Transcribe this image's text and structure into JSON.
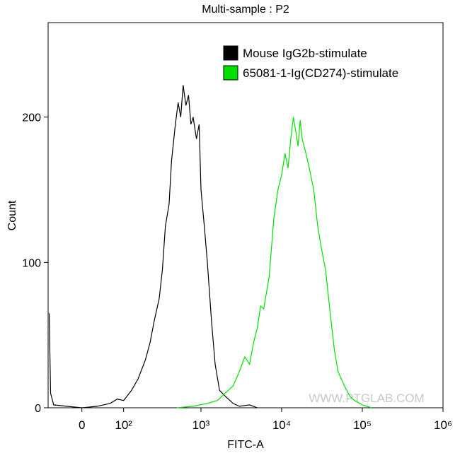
{
  "chart_data": {
    "type": "histogram-line",
    "title": "Multi-sample : P2",
    "xlabel": "FITC-A",
    "ylabel": "Count",
    "watermark": "WWW.PTGLAB.COM",
    "xscale": "biexponential",
    "xlim": [
      -75,
      1000000
    ],
    "ylim": [
      0,
      265
    ],
    "xticks": [
      0,
      {
        "value": 100,
        "label": "10²"
      },
      {
        "value": 1000,
        "label": "10³"
      },
      {
        "value": 10000,
        "label": "10⁴"
      },
      {
        "value": 100000,
        "label": "10⁵"
      },
      {
        "value": 1000000,
        "label": "10⁶"
      }
    ],
    "yticks": [
      0,
      100,
      200
    ],
    "legend": "upper right",
    "series": [
      {
        "name": "Mouse IgG2b-stimulate",
        "color": "#000000",
        "x": [
          -72,
          -68,
          -60,
          -30,
          0,
          30,
          60,
          80,
          100,
          130,
          160,
          200,
          230,
          260,
          300,
          330,
          360,
          400,
          430,
          480,
          520,
          560,
          600,
          650,
          700,
          750,
          800,
          880,
          950,
          1000,
          1100,
          1200,
          1350,
          1500,
          1700,
          2000,
          2500,
          3000,
          4000,
          5000
        ],
        "values": [
          65,
          10,
          2,
          1,
          0,
          1,
          3,
          6,
          5,
          12,
          20,
          33,
          45,
          60,
          75,
          95,
          125,
          140,
          170,
          195,
          210,
          200,
          222,
          208,
          215,
          195,
          200,
          185,
          195,
          150,
          125,
          100,
          60,
          30,
          12,
          8,
          3,
          1,
          2,
          0
        ]
      },
      {
        "name": "65081-1-Ig(CD274)-stimulate",
        "color": "#00e000",
        "x": [
          500,
          800,
          1200,
          1600,
          2000,
          2500,
          3000,
          3500,
          4000,
          4500,
          5000,
          5500,
          6000,
          7000,
          8000,
          9000,
          10000,
          11000,
          12000,
          13000,
          14000,
          15000,
          16000,
          17000,
          18000,
          20000,
          22000,
          25000,
          28000,
          31000,
          35000,
          40000,
          45000,
          50000,
          60000,
          70000,
          80000,
          100000,
          130000
        ],
        "values": [
          0,
          1,
          3,
          5,
          10,
          15,
          25,
          35,
          30,
          45,
          55,
          70,
          68,
          90,
          130,
          150,
          160,
          175,
          165,
          185,
          200,
          190,
          180,
          198,
          185,
          175,
          165,
          150,
          125,
          110,
          95,
          65,
          40,
          25,
          15,
          8,
          5,
          2,
          0
        ]
      }
    ]
  }
}
